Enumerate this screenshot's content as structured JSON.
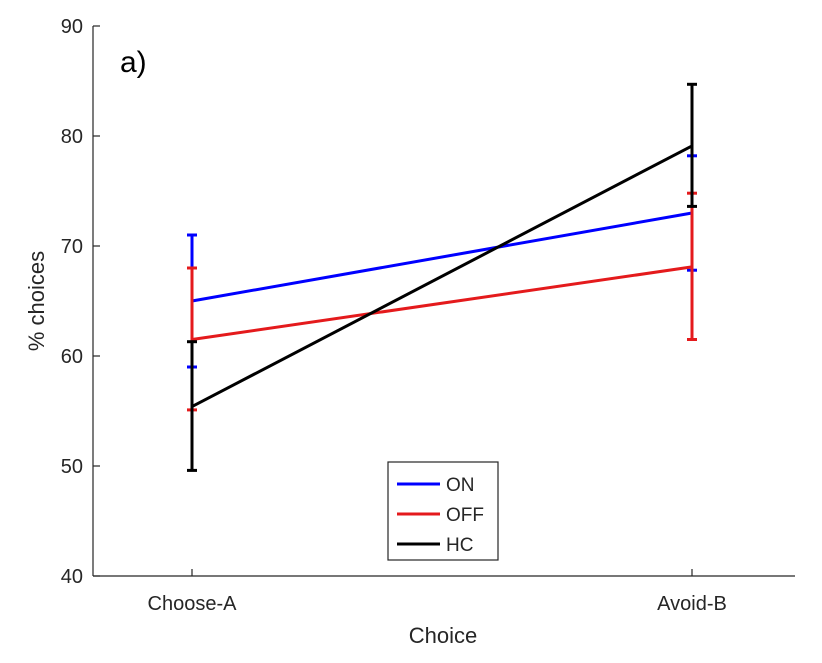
{
  "chart_data": {
    "type": "line",
    "panel_label": "a)",
    "xlabel": "Choice",
    "ylabel": "% choices",
    "categories": [
      "Choose-A",
      "Avoid-B"
    ],
    "ylim": [
      40,
      90
    ],
    "yticks": [
      40,
      50,
      60,
      70,
      80,
      90
    ],
    "grid": false,
    "legend_position": "bottom-center",
    "series": [
      {
        "name": "ON",
        "color": "#0000ff",
        "values": [
          65.0,
          73.0
        ],
        "err_low": [
          59.0,
          67.8
        ],
        "err_high": [
          71.0,
          78.2
        ]
      },
      {
        "name": "OFF",
        "color": "#e41a1c",
        "values": [
          61.5,
          68.1
        ],
        "err_low": [
          55.1,
          61.5
        ],
        "err_high": [
          68.0,
          74.8
        ]
      },
      {
        "name": "HC",
        "color": "#000000",
        "values": [
          55.4,
          79.1
        ],
        "err_low": [
          49.6,
          73.6
        ],
        "err_high": [
          61.3,
          84.7
        ]
      }
    ]
  }
}
